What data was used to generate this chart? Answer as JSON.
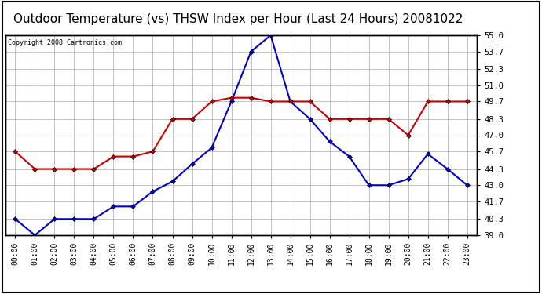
{
  "title": "Outdoor Temperature (vs) THSW Index per Hour (Last 24 Hours) 20081022",
  "copyright": "Copyright 2008 Cartronics.com",
  "hours": [
    "00:00",
    "01:00",
    "02:00",
    "03:00",
    "04:00",
    "05:00",
    "06:00",
    "07:00",
    "08:00",
    "09:00",
    "10:00",
    "11:00",
    "12:00",
    "13:00",
    "14:00",
    "15:00",
    "16:00",
    "17:00",
    "18:00",
    "19:00",
    "20:00",
    "21:00",
    "22:00",
    "23:00"
  ],
  "temp": [
    40.3,
    39.0,
    40.3,
    40.3,
    40.3,
    41.3,
    41.3,
    42.5,
    43.3,
    44.7,
    46.0,
    49.7,
    53.7,
    55.0,
    49.7,
    48.3,
    46.5,
    45.3,
    43.0,
    43.0,
    43.5,
    45.5,
    44.3,
    43.0
  ],
  "thsw": [
    45.7,
    44.3,
    44.3,
    44.3,
    44.3,
    45.3,
    45.3,
    45.7,
    48.3,
    48.3,
    49.7,
    50.0,
    50.0,
    49.7,
    49.7,
    49.7,
    48.3,
    48.3,
    48.3,
    48.3,
    47.0,
    49.7,
    49.7,
    49.7
  ],
  "temp_color": "#0000cc",
  "thsw_color": "#cc0000",
  "bg_color": "#ffffff",
  "grid_color": "#aaaaaa",
  "ylim": [
    39.0,
    55.0
  ],
  "yticks": [
    39.0,
    40.3,
    41.7,
    43.0,
    44.3,
    45.7,
    47.0,
    48.3,
    49.7,
    51.0,
    52.3,
    53.7,
    55.0
  ],
  "title_fontsize": 11,
  "title_color": "#000000",
  "marker": "D",
  "marker_size": 3,
  "line_width": 1.5
}
